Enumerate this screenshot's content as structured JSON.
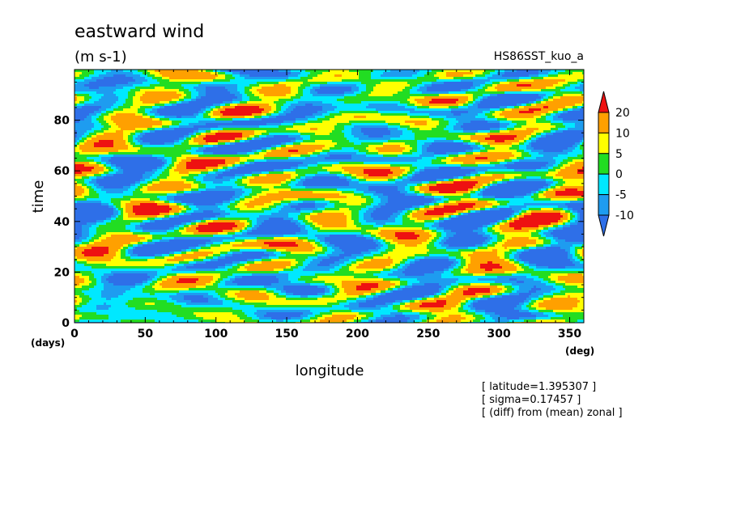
{
  "chart_data": {
    "type": "heatmap",
    "title": "eastward wind",
    "units": "(m s-1)",
    "experiment": "HS86SST_kuo_a",
    "xlabel": "longitude",
    "ylabel": "time",
    "x_unit": "(deg)",
    "y_unit": "(days)",
    "xlim": [
      0,
      360
    ],
    "ylim": [
      0,
      100
    ],
    "x_ticks": [
      0,
      50,
      100,
      150,
      200,
      250,
      300,
      350
    ],
    "y_ticks": [
      0,
      20,
      40,
      60,
      80
    ],
    "levels": [
      -10,
      -5,
      0,
      5,
      10,
      20
    ],
    "colorbar_labels": [
      "20",
      "10",
      "5",
      "0",
      "-5",
      "-10"
    ],
    "colors": {
      "below_-10": "#2e6fe8",
      "-10_to_-5": "#1e9cf0",
      "-5_to_0": "#00e8ff",
      "0_to_5": "#22dd22",
      "5_to_10": "#ffff00",
      "10_to_20": "#ffa000",
      "above_20": "#ee1111"
    },
    "grid": false,
    "legend": "right colorbar",
    "notes": [
      "[ latitude=1.395307 ]",
      "[ sigma=0.17457 ]",
      "[ (diff) from (mean) zonal ]"
    ]
  }
}
